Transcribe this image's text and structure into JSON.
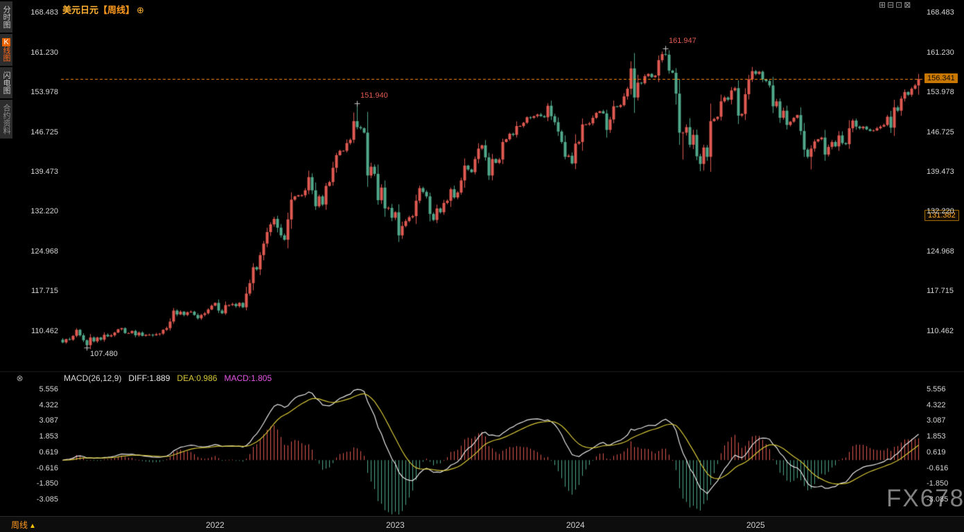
{
  "header": {
    "symbol": "美元日元",
    "period": "【周线】"
  },
  "icons": {
    "add": "⊕",
    "indicator_toggle": "⊗",
    "period_arrow": "▲",
    "toolbar": [
      "⊞",
      "⊟",
      "⊡",
      "⊠"
    ]
  },
  "sidebar": {
    "tabs": [
      {
        "label": "分时图"
      },
      {
        "label": "K线图",
        "badge": "K",
        "rest": "线图",
        "active": true
      },
      {
        "label": "闪电图"
      },
      {
        "label": "合约资料"
      }
    ]
  },
  "price_axis": {
    "labels": [
      "168.483",
      "161.230",
      "153.978",
      "146.725",
      "139.473",
      "132.220",
      "124.968",
      "117.715",
      "110.462"
    ]
  },
  "macd_axis": {
    "labels": [
      "5.556",
      "4.322",
      "3.087",
      "1.853",
      "0.619",
      "-0.616",
      "-1.850",
      "-3.085"
    ]
  },
  "x_axis": {
    "years": [
      {
        "label": "2022",
        "week": 44
      },
      {
        "label": "2023",
        "week": 96
      },
      {
        "label": "2024",
        "week": 148
      },
      {
        "label": "2025",
        "week": 200
      }
    ]
  },
  "tags": {
    "last_price": "156.341",
    "secondary_price": "131.382"
  },
  "indicator_header": {
    "name": "MACD(26,12,9)",
    "diff": "DIFF:1.889",
    "dea": "DEA:0.986",
    "macd": "MACD:1.805"
  },
  "annotations": [
    {
      "text": "161.947",
      "week": 174,
      "price": 161.947,
      "color": "#e25a50",
      "placement": "above"
    },
    {
      "text": "151.940",
      "week": 85,
      "price": 151.94,
      "color": "#e25a50",
      "placement": "above"
    },
    {
      "text": "107.480",
      "week": 7,
      "price": 107.48,
      "color": "#d8d8d8",
      "placement": "below"
    }
  ],
  "footer": {
    "period_label": "周线",
    "watermark": "FX678"
  },
  "chart_data": {
    "type": "candlestick",
    "title": "美元日元【周线】",
    "subpanel": "MACD",
    "x_labels": [
      "2022",
      "2023",
      "2024",
      "2025"
    ],
    "price_ticks": [
      168.483,
      161.23,
      153.978,
      146.725,
      139.473,
      132.22,
      124.968,
      117.715,
      110.462
    ],
    "macd_ticks": [
      5.556,
      4.322,
      3.087,
      1.853,
      0.619,
      -0.616,
      -1.85,
      -3.085
    ],
    "key_points": {
      "high_2024": 161.947,
      "high_2022": 151.94,
      "low_2021": 107.48,
      "last_price": 156.341,
      "secondary_level": 131.382
    },
    "indicator": {
      "name": "MACD",
      "params": [
        26,
        12,
        9
      ],
      "diff": 1.889,
      "dea": 0.986,
      "macd": 1.805
    },
    "weekly_closes": [
      108.4,
      109.0,
      108.9,
      109.6,
      110.7,
      109.7,
      108.8,
      107.9,
      109.3,
      108.6,
      109.3,
      108.9,
      109.8,
      109.5,
      109.7,
      110.2,
      110.8,
      111.0,
      110.1,
      110.1,
      110.5,
      109.7,
      110.2,
      109.6,
      109.8,
      109.8,
      109.7,
      109.9,
      110.0,
      110.7,
      111.0,
      112.2,
      114.2,
      113.5,
      114.0,
      113.4,
      113.9,
      114.0,
      113.4,
      112.8,
      113.4,
      113.7,
      114.4,
      115.1,
      115.6,
      114.2,
      113.7,
      115.2,
      115.2,
      115.4,
      115.0,
      115.6,
      114.8,
      117.3,
      119.2,
      122.1,
      121.7,
      124.3,
      126.4,
      128.5,
      129.9,
      130.9,
      129.3,
      127.9,
      127.1,
      130.8,
      134.4,
      135.0,
      135.2,
      135.2,
      136.1,
      138.5,
      136.1,
      133.2,
      135.0,
      133.5,
      136.9,
      137.6,
      140.2,
      142.5,
      143.3,
      143.3,
      144.7,
      145.3,
      148.7,
      147.6,
      147.4,
      146.6,
      138.8,
      140.4,
      139.1,
      134.3,
      136.6,
      132.8,
      132.9,
      131.1,
      132.1,
      127.9,
      129.6,
      130.5,
      131.2,
      131.4,
      134.2,
      136.5,
      135.8,
      135.0,
      131.8,
      130.7,
      132.8,
      132.1,
      133.8,
      134.2,
      136.3,
      134.8,
      135.7,
      137.9,
      140.6,
      139.9,
      139.4,
      141.8,
      143.7,
      144.3,
      142.1,
      138.8,
      141.8,
      141.1,
      141.7,
      144.9,
      145.4,
      146.4,
      146.2,
      147.8,
      147.8,
      148.4,
      149.4,
      149.3,
      149.6,
      149.9,
      149.6,
      149.4,
      151.5,
      149.6,
      148.5,
      146.8,
      144.9,
      142.2,
      142.4,
      141.0,
      144.6,
      144.9,
      148.1,
      148.1,
      148.3,
      149.3,
      150.2,
      150.5,
      150.1,
      147.1,
      149.0,
      151.4,
      151.3,
      151.6,
      153.2,
      154.6,
      158.3,
      153.0,
      155.7,
      155.6,
      156.9,
      157.3,
      156.7,
      157.0,
      159.8,
      160.9,
      160.8,
      157.9,
      157.5,
      153.7,
      146.6,
      146.6,
      147.6,
      144.4,
      146.2,
      142.3,
      140.9,
      143.9,
      142.2,
      148.7,
      149.1,
      149.5,
      152.3,
      153.0,
      152.6,
      154.3,
      154.7,
      149.7,
      150.0,
      153.6,
      156.3,
      157.8,
      157.3,
      157.7,
      156.3,
      156.0,
      155.2,
      151.4,
      152.3,
      149.3,
      150.6,
      148.0,
      148.6,
      149.3,
      149.8,
      146.9,
      143.5,
      142.2,
      143.7,
      145.0,
      145.4,
      145.7,
      142.6,
      144.0,
      144.9,
      144.1,
      146.1,
      144.7,
      144.5,
      147.4,
      148.8,
      147.7,
      147.4,
      147.7,
      147.2,
      146.9,
      147.0,
      147.4,
      147.7,
      148.0,
      149.5,
      147.5,
      151.2,
      150.6,
      152.8,
      154.0,
      153.5,
      154.6,
      155.2,
      156.341
    ],
    "wick_overrides": {
      "7": {
        "low": 107.48
      },
      "85": {
        "high": 151.94
      },
      "97": {
        "low": 127.2
      },
      "164": {
        "high": 158.44
      },
      "174": {
        "high": 161.947
      },
      "179": {
        "low": 141.7
      },
      "184": {
        "low": 139.58
      },
      "216": {
        "low": 139.9
      },
      "247": {
        "high": 157.3,
        "low": 153.5
      }
    },
    "colors": {
      "up": "#e15a52",
      "down": "#51a98c",
      "diff_line": "#e8e8e8",
      "dea_line": "#d8c838",
      "macd_label": "#e556e5",
      "accent": "#ff8e0a"
    }
  }
}
